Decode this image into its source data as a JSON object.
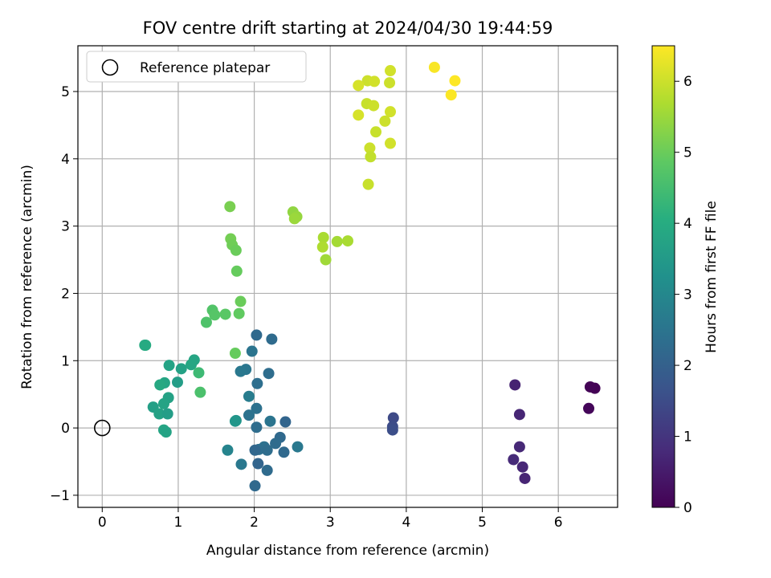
{
  "chart_data": {
    "type": "scatter",
    "title": "FOV centre drift starting at 2024/04/30 19:44:59",
    "xlabel": "Angular distance from reference (arcmin)",
    "ylabel": "Rotation from reference (arcmin)",
    "xlim": [
      -0.32,
      6.78
    ],
    "ylim": [
      -1.18,
      5.68
    ],
    "xticks": [
      0,
      1,
      2,
      3,
      4,
      5,
      6
    ],
    "yticks": [
      -1,
      0,
      1,
      2,
      3,
      4,
      5
    ],
    "grid": true,
    "legend": {
      "position": "top-left",
      "entries": [
        "Reference platepar"
      ]
    },
    "reference_point": {
      "x": 0,
      "y": 0
    },
    "colorbar": {
      "label": "Hours from first FF file",
      "colormap": "viridis",
      "range": [
        0,
        6.5
      ],
      "ticks": [
        0,
        1,
        2,
        3,
        4,
        5,
        6
      ]
    },
    "points": [
      {
        "x": 6.48,
        "y": 0.59,
        "c": 0.02
      },
      {
        "x": 6.42,
        "y": 0.61,
        "c": 0.05
      },
      {
        "x": 6.4,
        "y": 0.29,
        "c": 0.1
      },
      {
        "x": 5.43,
        "y": 0.64,
        "c": 0.65
      },
      {
        "x": 5.49,
        "y": 0.2,
        "c": 0.7
      },
      {
        "x": 5.49,
        "y": -0.28,
        "c": 0.75
      },
      {
        "x": 5.41,
        "y": -0.47,
        "c": 0.8
      },
      {
        "x": 5.53,
        "y": -0.58,
        "c": 0.72
      },
      {
        "x": 5.56,
        "y": -0.75,
        "c": 0.68
      },
      {
        "x": 3.83,
        "y": 0.15,
        "c": 1.45
      },
      {
        "x": 3.82,
        "y": 0.02,
        "c": 1.5
      },
      {
        "x": 3.82,
        "y": -0.03,
        "c": 1.55
      },
      {
        "x": 2.03,
        "y": 1.38,
        "c": 2.2
      },
      {
        "x": 2.23,
        "y": 1.32,
        "c": 2.25
      },
      {
        "x": 1.97,
        "y": 1.14,
        "c": 2.5
      },
      {
        "x": 1.89,
        "y": 0.87,
        "c": 2.55
      },
      {
        "x": 1.82,
        "y": 0.84,
        "c": 2.6
      },
      {
        "x": 2.19,
        "y": 0.81,
        "c": 2.3
      },
      {
        "x": 2.04,
        "y": 0.66,
        "c": 2.35
      },
      {
        "x": 1.93,
        "y": 0.47,
        "c": 2.7
      },
      {
        "x": 2.03,
        "y": 0.29,
        "c": 2.4
      },
      {
        "x": 1.93,
        "y": 0.19,
        "c": 2.45
      },
      {
        "x": 2.21,
        "y": 0.1,
        "c": 2.5
      },
      {
        "x": 2.41,
        "y": 0.09,
        "c": 2.1
      },
      {
        "x": 2.03,
        "y": 0.01,
        "c": 2.3
      },
      {
        "x": 2.34,
        "y": -0.14,
        "c": 2.2
      },
      {
        "x": 2.28,
        "y": -0.23,
        "c": 2.25
      },
      {
        "x": 2.57,
        "y": -0.28,
        "c": 2.6
      },
      {
        "x": 2.13,
        "y": -0.28,
        "c": 2.4
      },
      {
        "x": 2.06,
        "y": -0.32,
        "c": 2.35
      },
      {
        "x": 2.17,
        "y": -0.33,
        "c": 2.3
      },
      {
        "x": 2.01,
        "y": -0.33,
        "c": 2.15
      },
      {
        "x": 2.39,
        "y": -0.36,
        "c": 2.2
      },
      {
        "x": 1.65,
        "y": -0.33,
        "c": 2.9
      },
      {
        "x": 2.05,
        "y": -0.53,
        "c": 2.1
      },
      {
        "x": 1.83,
        "y": -0.54,
        "c": 2.6
      },
      {
        "x": 2.17,
        "y": -0.63,
        "c": 2.25
      },
      {
        "x": 2.01,
        "y": -0.86,
        "c": 2.2
      },
      {
        "x": 1.76,
        "y": 0.11,
        "c": 3.3
      },
      {
        "x": 1.75,
        "y": 0.1,
        "c": 3.4
      },
      {
        "x": 0.57,
        "y": 1.23,
        "c": 4.0
      },
      {
        "x": 0.56,
        "y": 1.23,
        "c": 3.95
      },
      {
        "x": 1.21,
        "y": 1.01,
        "c": 3.8
      },
      {
        "x": 0.88,
        "y": 0.93,
        "c": 3.75
      },
      {
        "x": 1.17,
        "y": 0.94,
        "c": 3.85
      },
      {
        "x": 1.04,
        "y": 0.88,
        "c": 3.7
      },
      {
        "x": 0.99,
        "y": 0.68,
        "c": 3.6
      },
      {
        "x": 0.82,
        "y": 0.67,
        "c": 3.8
      },
      {
        "x": 0.76,
        "y": 0.64,
        "c": 3.9
      },
      {
        "x": 0.87,
        "y": 0.45,
        "c": 3.7
      },
      {
        "x": 0.81,
        "y": 0.36,
        "c": 3.75
      },
      {
        "x": 0.67,
        "y": 0.31,
        "c": 3.65
      },
      {
        "x": 0.75,
        "y": 0.21,
        "c": 3.7
      },
      {
        "x": 0.86,
        "y": 0.21,
        "c": 3.6
      },
      {
        "x": 0.81,
        "y": -0.03,
        "c": 3.8
      },
      {
        "x": 0.84,
        "y": -0.06,
        "c": 3.75
      },
      {
        "x": 1.27,
        "y": 0.82,
        "c": 4.4
      },
      {
        "x": 1.29,
        "y": 0.53,
        "c": 4.6
      },
      {
        "x": 1.68,
        "y": 3.29,
        "c": 5.15
      },
      {
        "x": 1.69,
        "y": 2.81,
        "c": 5.1
      },
      {
        "x": 1.71,
        "y": 2.72,
        "c": 5.05
      },
      {
        "x": 1.76,
        "y": 2.64,
        "c": 5.0
      },
      {
        "x": 1.77,
        "y": 2.33,
        "c": 4.95
      },
      {
        "x": 1.82,
        "y": 1.88,
        "c": 5.0
      },
      {
        "x": 1.8,
        "y": 1.7,
        "c": 4.9
      },
      {
        "x": 1.45,
        "y": 1.75,
        "c": 4.7
      },
      {
        "x": 1.48,
        "y": 1.68,
        "c": 4.75
      },
      {
        "x": 1.62,
        "y": 1.69,
        "c": 4.8
      },
      {
        "x": 1.37,
        "y": 1.57,
        "c": 4.65
      },
      {
        "x": 1.75,
        "y": 1.11,
        "c": 4.95
      },
      {
        "x": 2.51,
        "y": 3.21,
        "c": 5.4
      },
      {
        "x": 2.56,
        "y": 3.14,
        "c": 5.45
      },
      {
        "x": 2.53,
        "y": 3.11,
        "c": 5.5
      },
      {
        "x": 2.91,
        "y": 2.83,
        "c": 5.65
      },
      {
        "x": 2.9,
        "y": 2.69,
        "c": 5.7
      },
      {
        "x": 3.09,
        "y": 2.77,
        "c": 5.6
      },
      {
        "x": 3.23,
        "y": 2.78,
        "c": 5.65
      },
      {
        "x": 2.94,
        "y": 2.5,
        "c": 5.55
      },
      {
        "x": 3.49,
        "y": 5.16,
        "c": 6.0
      },
      {
        "x": 3.58,
        "y": 5.15,
        "c": 6.05
      },
      {
        "x": 3.37,
        "y": 5.09,
        "c": 6.1
      },
      {
        "x": 3.79,
        "y": 5.31,
        "c": 6.05
      },
      {
        "x": 3.78,
        "y": 5.13,
        "c": 6.0
      },
      {
        "x": 3.48,
        "y": 4.82,
        "c": 5.95
      },
      {
        "x": 3.57,
        "y": 4.79,
        "c": 6.0
      },
      {
        "x": 3.79,
        "y": 4.7,
        "c": 6.05
      },
      {
        "x": 3.37,
        "y": 4.65,
        "c": 6.1
      },
      {
        "x": 3.72,
        "y": 4.56,
        "c": 6.0
      },
      {
        "x": 3.6,
        "y": 4.4,
        "c": 5.95
      },
      {
        "x": 3.79,
        "y": 4.23,
        "c": 6.05
      },
      {
        "x": 3.52,
        "y": 4.16,
        "c": 6.0
      },
      {
        "x": 3.53,
        "y": 4.03,
        "c": 5.9
      },
      {
        "x": 3.5,
        "y": 3.62,
        "c": 5.95
      },
      {
        "x": 4.37,
        "y": 5.36,
        "c": 6.45
      },
      {
        "x": 4.64,
        "y": 5.16,
        "c": 6.5
      },
      {
        "x": 4.59,
        "y": 4.95,
        "c": 6.48
      }
    ]
  }
}
